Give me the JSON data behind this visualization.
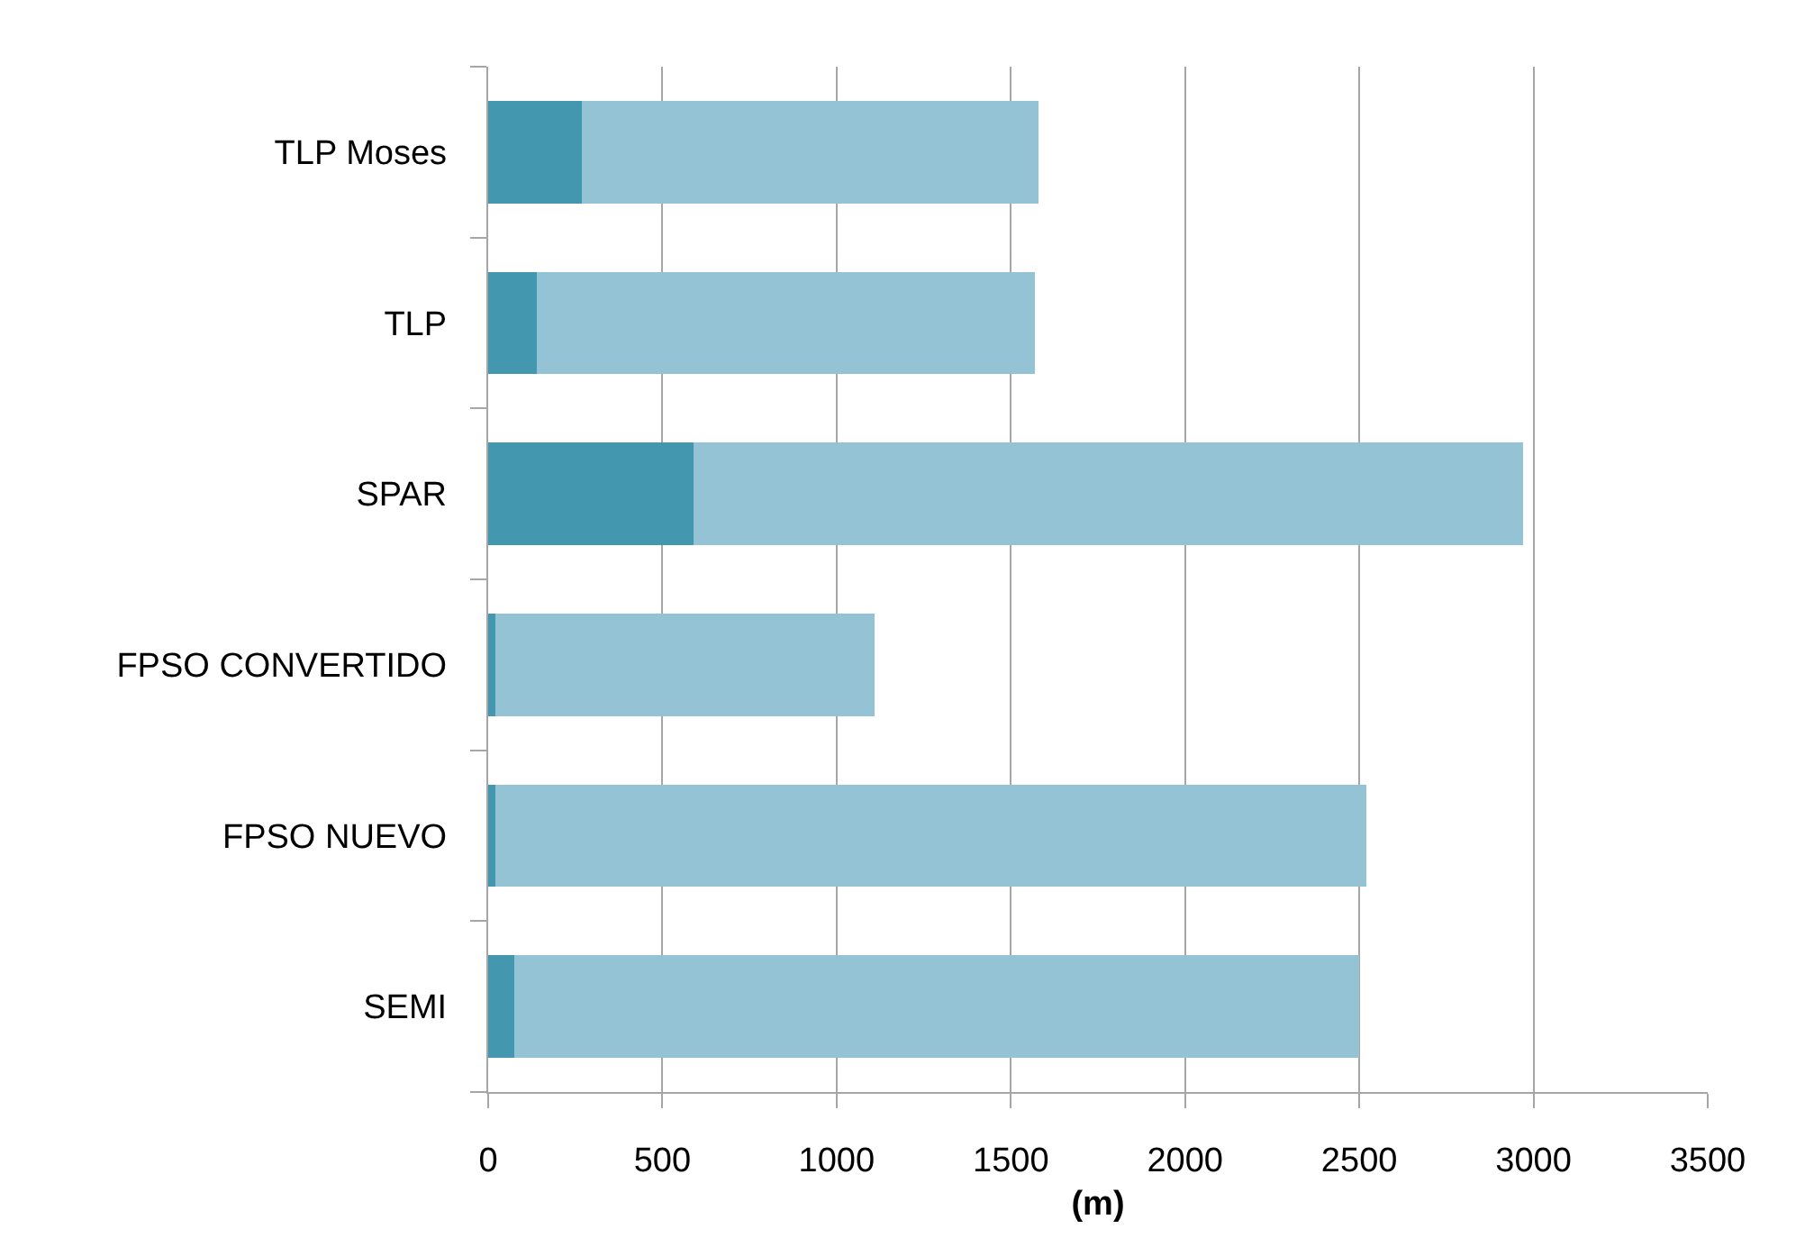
{
  "chart_data": {
    "type": "bar",
    "orientation": "horizontal",
    "stacked": true,
    "xlabel": "(m)",
    "categories": [
      "TLP Moses",
      "TLP",
      "SPAR",
      "FPSO CONVERTIDO",
      "FPSO NUEVO",
      "SEMI"
    ],
    "series": [
      {
        "color": "#4397ae",
        "values": [
          270,
          140,
          590,
          20,
          20,
          75
        ]
      },
      {
        "color": "#93c3d5",
        "values": [
          1310,
          1430,
          2380,
          1090,
          2500,
          2425
        ]
      }
    ],
    "xlim": [
      0,
      3500
    ],
    "xticks": [
      0,
      500,
      1000,
      1500,
      2000,
      2500,
      3000,
      3500
    ],
    "grid": "x"
  }
}
